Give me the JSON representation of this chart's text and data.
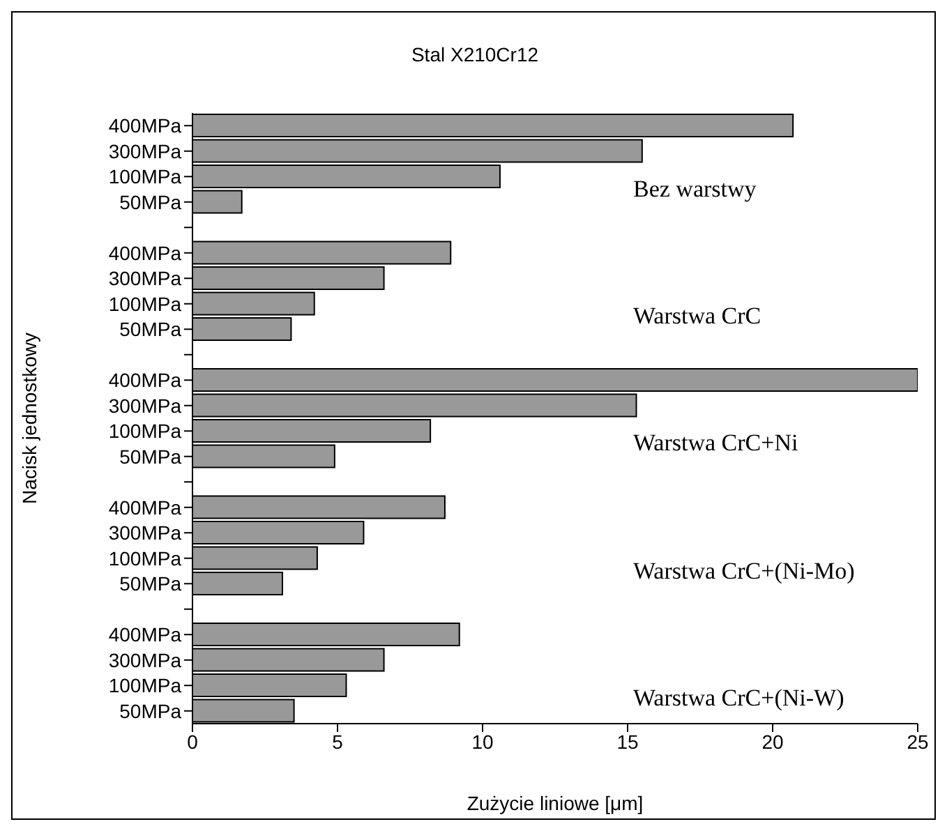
{
  "chart_data": {
    "type": "bar",
    "orientation": "horizontal",
    "title": "Stal X210Cr12",
    "xlabel": "Zużycie liniowe [μm]",
    "ylabel": "Nacisk jednostkowy",
    "categories": [
      "400MPa",
      "300MPa",
      "100MPa",
      "50MPa",
      null,
      "400MPa",
      "300MPa",
      "100MPa",
      "50MPa",
      null,
      "400MPa",
      "300MPa",
      "100MPa",
      "50MPa",
      null,
      "400MPa",
      "300MPa",
      "100MPa",
      "50MPa",
      null,
      "400MPa",
      "300MPa",
      "100MPa",
      "50MPa"
    ],
    "values": [
      20.7,
      15.5,
      10.6,
      1.7,
      null,
      8.9,
      6.6,
      4.2,
      3.4,
      null,
      25,
      15.3,
      8.2,
      4.9,
      null,
      8.7,
      5.9,
      4.3,
      3.1,
      null,
      9.2,
      6.6,
      5.3,
      3.5
    ],
    "color": "#999999",
    "xlim": [
      0,
      25
    ],
    "xticks": [
      0,
      5,
      10,
      15,
      20,
      25
    ],
    "grid": false,
    "legend": false,
    "annotations": [
      "Bez warstwy",
      "Warstwa CrC",
      "Warstwa CrC+Ni",
      "Warstwa CrC+(Ni-Mo)",
      "Warstwa CrC+(Ni-W)"
    ]
  }
}
